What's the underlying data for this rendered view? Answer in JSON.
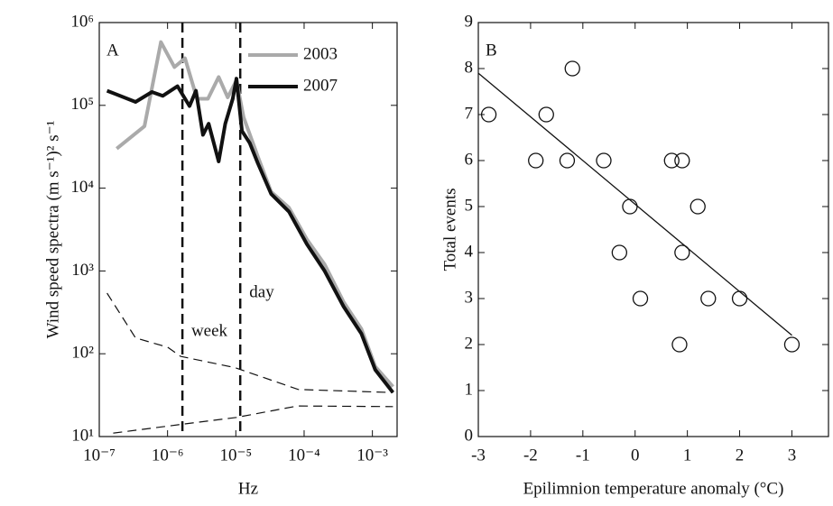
{
  "chart_data": [
    {
      "type": "line",
      "panel_label": "A",
      "x_label": "Hz",
      "y_label": "Wind speed spectra (m s⁻¹)² s⁻¹",
      "xscale": "log",
      "yscale": "log",
      "xlim": [
        1e-07,
        0.0023
      ],
      "ylim": [
        10,
        1000000
      ],
      "xticks": [
        {
          "value": 1e-07,
          "label": "10⁻⁷"
        },
        {
          "value": 1e-06,
          "label": "10⁻⁶"
        },
        {
          "value": 1e-05,
          "label": "10⁻⁵"
        },
        {
          "value": 0.0001,
          "label": "10⁻⁴"
        },
        {
          "value": 0.001,
          "label": "10⁻³"
        }
      ],
      "yticks": [
        {
          "value": 10,
          "label": "10¹"
        },
        {
          "value": 100,
          "label": "10²"
        },
        {
          "value": 1000,
          "label": "10³"
        },
        {
          "value": 10000,
          "label": "10⁴"
        },
        {
          "value": 100000,
          "label": "10⁵"
        },
        {
          "value": 1000000,
          "label": "10⁶"
        }
      ],
      "series": [
        {
          "name": "2003",
          "color": "#aaaaaa",
          "x": [
            1.8e-07,
            4.6e-07,
            8e-07,
            1.26e-06,
            1.8e-06,
            2.7e-06,
            3.9e-06,
            5.6e-06,
            7.6e-06,
            1.02e-05,
            1.3e-05,
            2.1e-05,
            3.3e-05,
            6e-05,
            0.00011,
            0.0002,
            0.00038,
            0.00069,
            0.0011,
            0.002
          ],
          "values": [
            30000,
            56000,
            580000,
            290000,
            370000,
            120000,
            120000,
            220000,
            125000,
            200000,
            72000,
            24000,
            9000,
            5800,
            2400,
            1200,
            420,
            200,
            70,
            40
          ]
        },
        {
          "name": "2007",
          "color": "#111111",
          "x": [
            1.3e-07,
            3.4e-07,
            5.9e-07,
            8.5e-07,
            1.4e-06,
            2.1e-06,
            2.6e-06,
            3.3e-06,
            4e-06,
            5.6e-06,
            7e-06,
            9e-06,
            1.02e-05,
            1.23e-05,
            1.6e-05,
            2.1e-05,
            3.3e-05,
            6e-05,
            0.00011,
            0.0002,
            0.00038,
            0.00069,
            0.0011,
            0.002
          ],
          "values": [
            150000,
            110000,
            145000,
            130000,
            170000,
            98000,
            150000,
            44000,
            60000,
            21000,
            60000,
            120000,
            210000,
            49000,
            35000,
            20000,
            8500,
            5200,
            2100,
            1000,
            370,
            175,
            64,
            34
          ]
        }
      ],
      "bounds": [
        {
          "x": [
            1.3e-07,
            3.4e-07,
            1e-06,
            1.55e-06,
            9.7e-06,
            8.2e-05,
            0.002
          ],
          "values": [
            540,
            155,
            120,
            93,
            68,
            37,
            34
          ]
        },
        {
          "x": [
            1.6e-07,
            1.55e-06,
            1.02e-05,
            8e-05,
            0.002
          ],
          "values": [
            11,
            14,
            17,
            23.4,
            23
          ]
        }
      ],
      "vlines": [
        1.65e-06,
        1.16e-05
      ],
      "annotations": [
        "week",
        "day"
      ]
    },
    {
      "type": "scatter",
      "panel_label": "B",
      "x_label": "Epilimnion temperature anomaly (°C)",
      "y_label": "Total events",
      "xlim": [
        -3,
        3.7
      ],
      "ylim": [
        0,
        9
      ],
      "xticks": [
        -3,
        -2,
        -1,
        0,
        1,
        2,
        3
      ],
      "yticks": [
        0,
        1,
        2,
        3,
        4,
        5,
        6,
        7,
        8,
        9
      ],
      "x": [
        -2.8,
        -1.9,
        -1.7,
        -1.3,
        -1.2,
        -0.6,
        -0.1,
        -0.3,
        0.1,
        0.7,
        0.9,
        1.2,
        0.9,
        0.85,
        1.4,
        2.0,
        3.0
      ],
      "values": [
        7,
        6,
        7,
        6,
        8,
        6,
        5,
        4,
        3,
        6,
        6,
        5,
        4,
        2,
        3,
        3,
        2
      ],
      "fit_line": {
        "x": [
          -3,
          3
        ],
        "values": [
          7.9,
          2.2
        ]
      }
    }
  ]
}
